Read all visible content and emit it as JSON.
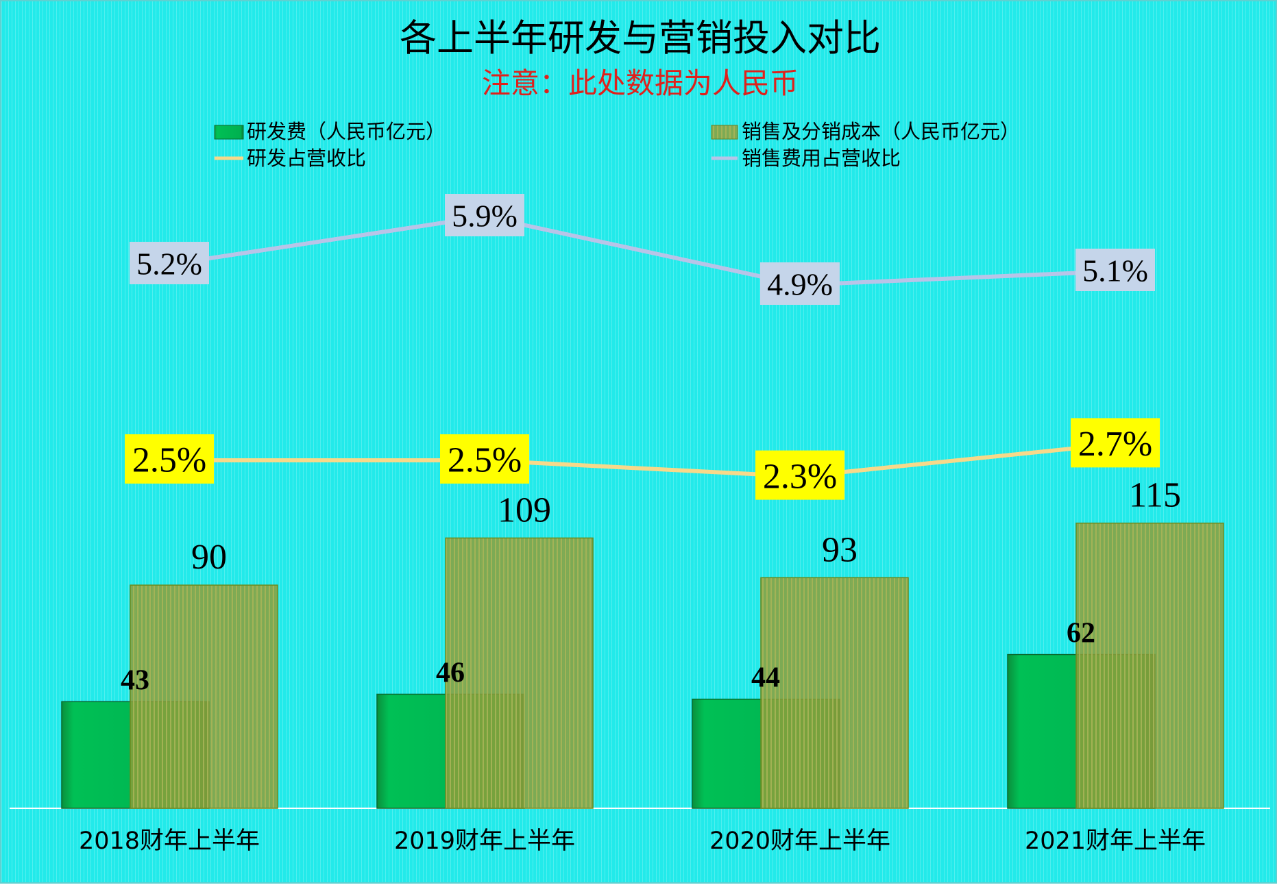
{
  "chart_data": {
    "type": "bar",
    "title": "各上半年研发与营销投入对比",
    "subtitle": "注意：此处数据为人民币",
    "categories": [
      "2018财年上半年",
      "2019财年上半年",
      "2020财年上半年",
      "2021财年上半年"
    ],
    "series": [
      {
        "name": "研发费（人民币亿元）",
        "type": "bar",
        "values": [
          43,
          46,
          44,
          62
        ],
        "color": "#00b050"
      },
      {
        "name": "销售及分销成本（人民币亿元）",
        "type": "bar",
        "values": [
          90,
          109,
          93,
          115
        ],
        "color": "#7a9a2e"
      },
      {
        "name": "研发占营收比",
        "type": "line",
        "values": [
          2.5,
          2.5,
          2.3,
          2.7
        ],
        "color": "#f7d98a",
        "label_bg": "#ffff00"
      },
      {
        "name": "销售费用占营收比",
        "type": "line",
        "values": [
          5.2,
          5.9,
          4.9,
          5.1
        ],
        "color": "#b8c4e8",
        "label_bg": "#c5d5ea"
      }
    ],
    "value_labels": {
      "rd_cost": [
        "43",
        "46",
        "44",
        "62"
      ],
      "sales_cost": [
        "90",
        "109",
        "93",
        "115"
      ],
      "rd_ratio": [
        "2.5%",
        "2.5%",
        "2.3%",
        "2.7%"
      ],
      "sales_ratio": [
        "5.2%",
        "5.9%",
        "4.9%",
        "5.1%"
      ]
    },
    "legend_position": "top",
    "grid": false,
    "title_color": "#000000",
    "subtitle_color": "#e0201b",
    "background_color": "#22eaea"
  }
}
